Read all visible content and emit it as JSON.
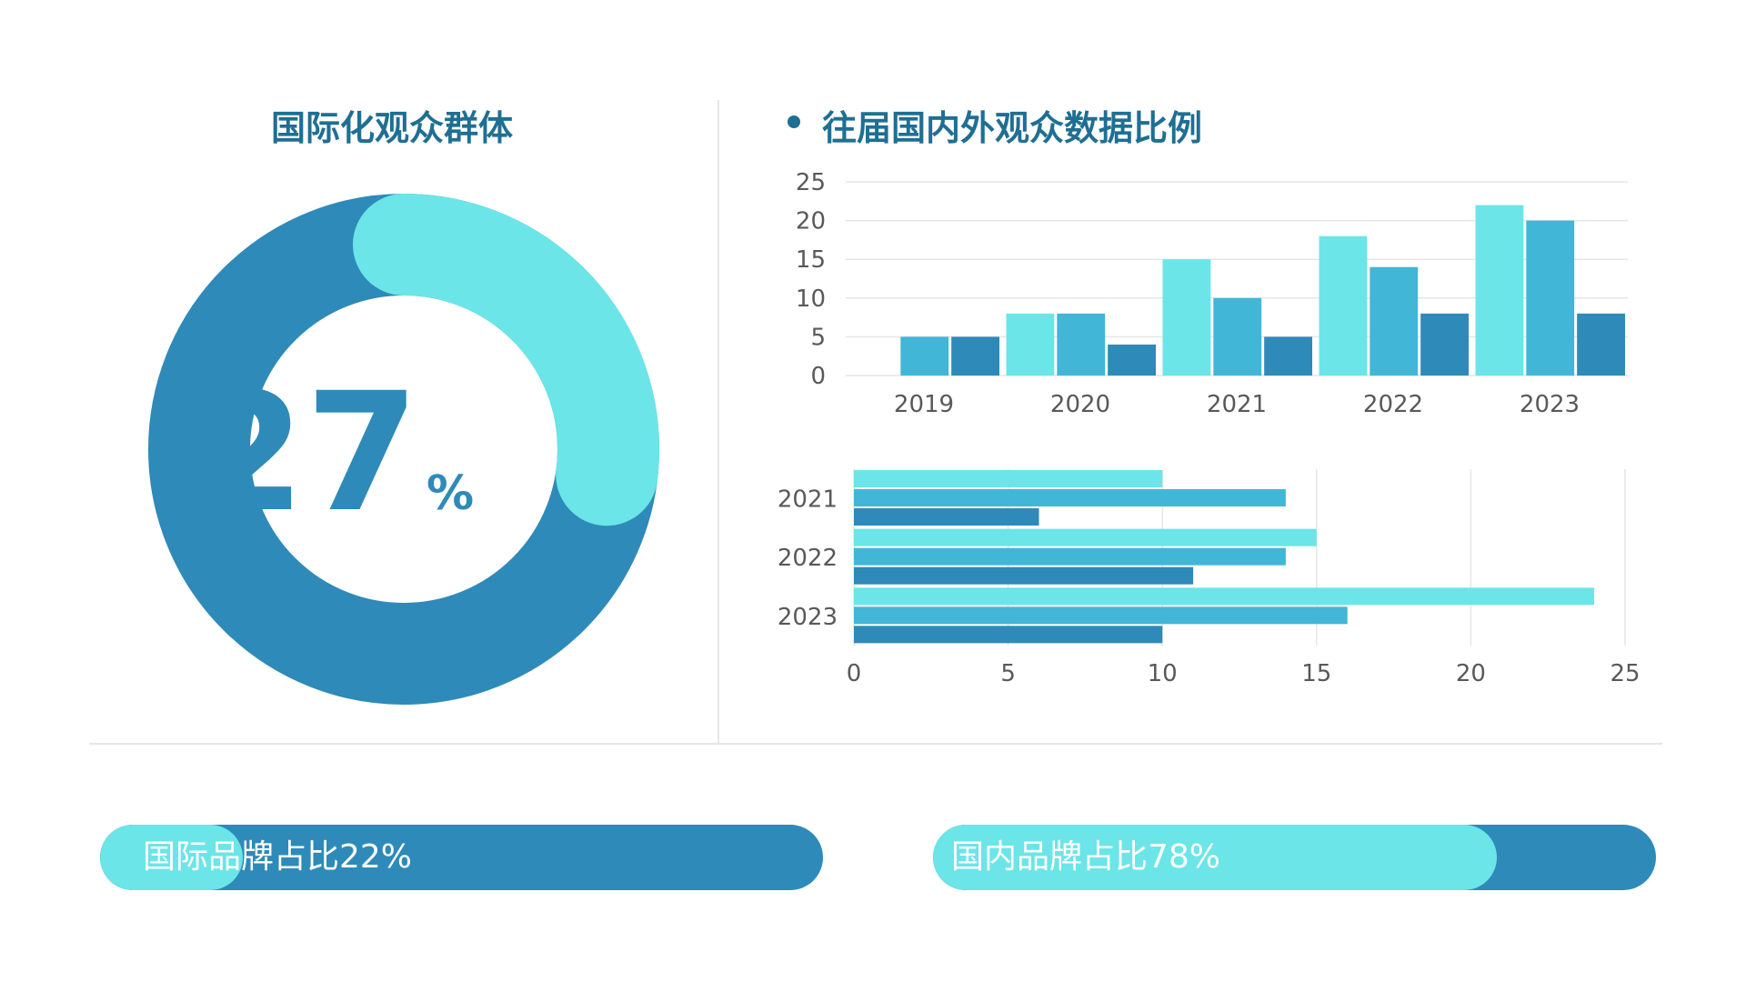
{
  "colors": {
    "c1": "#6be5e8",
    "c2": "#41b6d7",
    "c3": "#2e8ab9",
    "title": "#1f6f93",
    "axis": "#595959",
    "grid": "#e6e6e6"
  },
  "left": {
    "title": "国际化观众群体",
    "donut": {
      "value": 27,
      "number_text": "27",
      "percent_text": "%"
    }
  },
  "right": {
    "title": "往届国内外观众数据比例"
  },
  "chart_data": [
    {
      "type": "bar",
      "orientation": "vertical",
      "categories": [
        "2019",
        "2020",
        "2021",
        "2022",
        "2023"
      ],
      "series": [
        {
          "color": "#6be5e8",
          "values": [
            0,
            8,
            15,
            18,
            22
          ]
        },
        {
          "color": "#41b6d7",
          "values": [
            5,
            8,
            10,
            14,
            20
          ]
        },
        {
          "color": "#2e8ab9",
          "values": [
            5,
            4,
            5,
            8,
            8
          ]
        }
      ],
      "ylim": [
        0,
        25
      ],
      "yticks": [
        0,
        5,
        10,
        15,
        20,
        25
      ],
      "grid": true
    },
    {
      "type": "bar",
      "orientation": "horizontal",
      "categories": [
        "2021",
        "2022",
        "2023"
      ],
      "series": [
        {
          "color": "#6be5e8",
          "values": [
            10,
            15,
            24
          ]
        },
        {
          "color": "#41b6d7",
          "values": [
            14,
            14,
            16
          ]
        },
        {
          "color": "#2e8ab9",
          "values": [
            6,
            11,
            10
          ]
        }
      ],
      "xlim": [
        0,
        25
      ],
      "xticks": [
        0,
        5,
        10,
        15,
        20,
        25
      ],
      "grid": true
    }
  ],
  "bottom": {
    "bar1": {
      "label": "国际品牌占比22%",
      "value": 0.22
    },
    "bar2": {
      "label": "国内品牌占比78%",
      "value": 0.78
    }
  }
}
